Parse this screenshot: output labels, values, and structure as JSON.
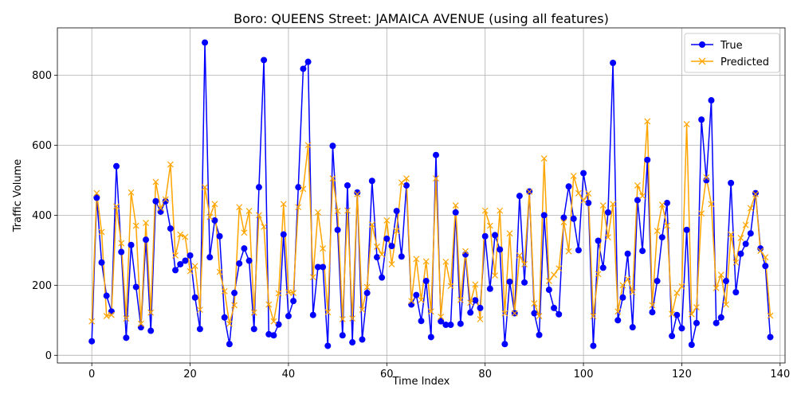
{
  "chart_data": {
    "type": "line",
    "title": "Boro: QUEENS Street: JAMAICA AVENUE (using all features)",
    "xlabel": "Time Index",
    "ylabel": "Traffic Volume",
    "xlim": [
      -7,
      141
    ],
    "ylim": [
      -22,
      935
    ],
    "xticks": [
      0,
      20,
      40,
      60,
      80,
      100,
      120,
      140
    ],
    "yticks": [
      0,
      200,
      400,
      600,
      800
    ],
    "grid": true,
    "legend_position": "top-right",
    "series": [
      {
        "name": "True",
        "color": "#0000ff",
        "marker": "circle",
        "values": [
          40,
          450,
          265,
          170,
          125,
          540,
          295,
          50,
          315,
          195,
          80,
          330,
          70,
          440,
          410,
          440,
          362,
          243,
          260,
          270,
          285,
          165,
          75,
          893,
          280,
          385,
          340,
          108,
          32,
          178,
          262,
          305,
          270,
          75,
          480,
          843,
          60,
          57,
          88,
          345,
          112,
          155,
          480,
          818,
          838,
          115,
          252,
          252,
          27,
          598,
          358,
          57,
          485,
          37,
          465,
          45,
          178,
          498,
          280,
          222,
          333,
          312,
          412,
          282,
          485,
          145,
          172,
          98,
          212,
          52,
          572,
          97,
          87,
          87,
          408,
          90,
          288,
          122,
          157,
          135,
          340,
          190,
          343,
          302,
          32,
          210,
          120,
          455,
          208,
          468,
          120,
          58,
          400,
          187,
          135,
          117,
          393,
          482,
          390,
          300,
          520,
          435,
          27,
          327,
          250,
          408,
          835,
          100,
          165,
          290,
          80,
          443,
          298,
          558,
          123,
          212,
          337,
          435,
          55,
          115,
          77,
          358,
          30,
          92,
          673,
          500,
          728,
          92,
          108,
          212,
          492,
          180,
          290,
          318,
          348,
          463,
          305,
          255,
          52
        ]
      },
      {
        "name": "Predicted",
        "color": "#ffa500",
        "marker": "x",
        "values": [
          97,
          463,
          352,
          112,
          115,
          425,
          320,
          105,
          465,
          370,
          90,
          378,
          122,
          495,
          420,
          445,
          545,
          285,
          345,
          338,
          240,
          255,
          130,
          480,
          395,
          432,
          238,
          183,
          90,
          143,
          423,
          350,
          412,
          122,
          400,
          367,
          145,
          97,
          177,
          432,
          180,
          178,
          423,
          475,
          600,
          223,
          408,
          305,
          123,
          505,
          412,
          103,
          413,
          105,
          460,
          130,
          195,
          373,
          310,
          288,
          385,
          260,
          355,
          493,
          505,
          155,
          275,
          158,
          268,
          125,
          505,
          110,
          267,
          198,
          428,
          158,
          297,
          150,
          202,
          103,
          413,
          370,
          228,
          413,
          120,
          348,
          120,
          285,
          260,
          467,
          148,
          112,
          562,
          212,
          230,
          248,
          380,
          297,
          512,
          463,
          442,
          462,
          112,
          232,
          428,
          337,
          432,
          125,
          200,
          218,
          180,
          485,
          455,
          668,
          143,
          355,
          430,
          370,
          118,
          178,
          197,
          660,
          117,
          137,
          405,
          508,
          432,
          192,
          230,
          145,
          345,
          265,
          335,
          372,
          420,
          460,
          298,
          280,
          113
        ]
      }
    ]
  }
}
